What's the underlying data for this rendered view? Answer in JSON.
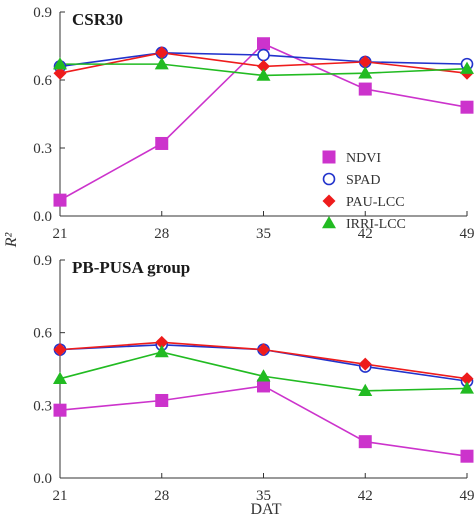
{
  "chart_data": [
    {
      "type": "line",
      "title": "CSR30",
      "x": [
        21,
        28,
        35,
        42,
        49
      ],
      "xlim": [
        21,
        49
      ],
      "ylim": [
        0.0,
        0.9
      ],
      "yticks": [
        "0.0",
        "0.3",
        "0.6",
        "0.9"
      ],
      "xticks": [
        "21",
        "28",
        "35",
        "42",
        "49"
      ],
      "legend": "right",
      "grid": false,
      "series": [
        {
          "name": "NDVI",
          "color": "#cc33cc",
          "marker": "square",
          "values": [
            0.07,
            0.32,
            0.76,
            0.56,
            0.48
          ]
        },
        {
          "name": "SPAD",
          "color": "#2233cc",
          "marker": "circle-open",
          "values": [
            0.66,
            0.72,
            0.71,
            0.68,
            0.67
          ]
        },
        {
          "name": "PAU-LCC",
          "color": "#ee1c1c",
          "marker": "diamond",
          "values": [
            0.63,
            0.72,
            0.66,
            0.68,
            0.63
          ]
        },
        {
          "name": "IRRI-LCC",
          "color": "#22bb22",
          "marker": "triangle",
          "values": [
            0.67,
            0.67,
            0.62,
            0.63,
            0.65
          ]
        }
      ]
    },
    {
      "type": "line",
      "title": "PB-PUSA group",
      "x": [
        21,
        28,
        35,
        42,
        49
      ],
      "xlim": [
        21,
        49
      ],
      "ylim": [
        0.0,
        0.9
      ],
      "yticks": [
        "0.0",
        "0.3",
        "0.6",
        "0.9"
      ],
      "xticks": [
        "21",
        "28",
        "35",
        "42",
        "49"
      ],
      "grid": false,
      "series": [
        {
          "name": "NDVI",
          "color": "#cc33cc",
          "marker": "square",
          "values": [
            0.28,
            0.32,
            0.38,
            0.15,
            0.09
          ]
        },
        {
          "name": "SPAD",
          "color": "#2233cc",
          "marker": "circle-open",
          "values": [
            0.53,
            0.55,
            0.53,
            0.46,
            0.4
          ]
        },
        {
          "name": "PAU-LCC",
          "color": "#ee1c1c",
          "marker": "diamond",
          "values": [
            0.53,
            0.56,
            0.53,
            0.47,
            0.41
          ]
        },
        {
          "name": "IRRI-LCC",
          "color": "#22bb22",
          "marker": "triangle",
          "values": [
            0.41,
            0.52,
            0.42,
            0.36,
            0.37
          ]
        }
      ]
    }
  ],
  "labels": {
    "ylabel": "R²",
    "xlabel": "DAT"
  }
}
